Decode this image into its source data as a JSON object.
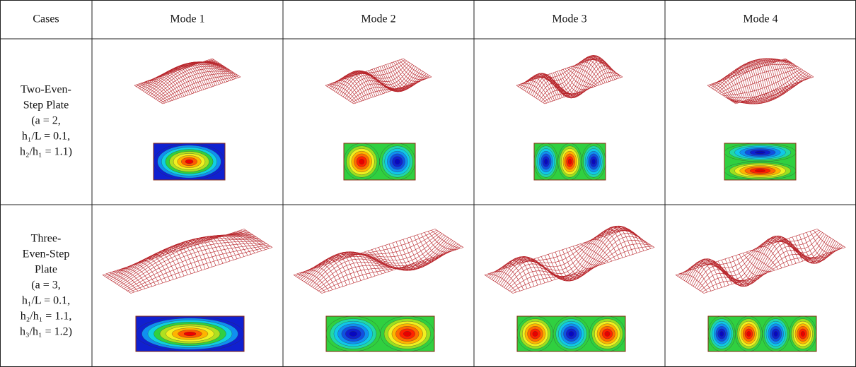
{
  "table": {
    "header": [
      "Cases",
      "Mode 1",
      "Mode 2",
      "Mode 3",
      "Mode 4"
    ],
    "rows": [
      {
        "case": [
          "Two-Even-",
          "Step Plate",
          "(a = 2,",
          "h₁/L = 0.1,",
          "h₂/h₁ = 1.1)"
        ]
      },
      {
        "case": [
          "Three-",
          "Even-Step",
          "Plate",
          "(a = 3,",
          "h₁/L = 0.1,",
          "h₂/h₁ = 1.1,",
          "h₃/h₁ = 1.2)"
        ]
      }
    ]
  }
}
